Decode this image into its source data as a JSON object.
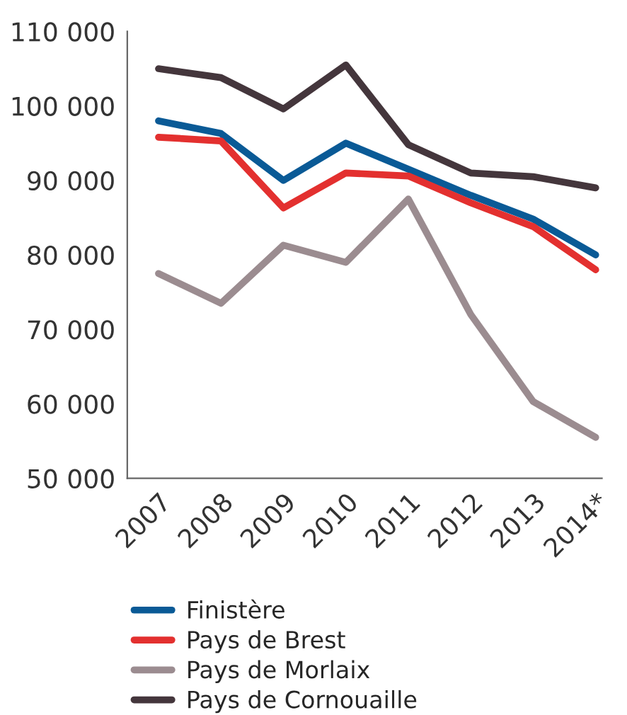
{
  "chart_data": {
    "type": "line",
    "categories": [
      "2007",
      "2008",
      "2009",
      "2010",
      "2011",
      "2012",
      "2013",
      "2014*"
    ],
    "series": [
      {
        "name": "Finistère",
        "color": "#0a5a96",
        "values": [
          98000,
          96300,
          90000,
          95000,
          91500,
          88000,
          84800,
          80000
        ]
      },
      {
        "name": "Pays de Brest",
        "color": "#e3302f",
        "values": [
          95800,
          95300,
          86300,
          91000,
          90600,
          87000,
          83800,
          78000
        ]
      },
      {
        "name": "Pays de Morlaix",
        "color": "#9b8c90",
        "values": [
          77500,
          73500,
          81300,
          79000,
          87500,
          72000,
          60300,
          55500
        ]
      },
      {
        "name": "Pays de Cornouaille",
        "color": "#44363c",
        "values": [
          105000,
          103800,
          99600,
          105500,
          94800,
          91000,
          90500,
          89000
        ]
      }
    ],
    "ylim": [
      50000,
      110000
    ],
    "yticks": [
      {
        "value": 50000,
        "label": "50 000"
      },
      {
        "value": 60000,
        "label": "60 000"
      },
      {
        "value": 70000,
        "label": "70 000"
      },
      {
        "value": 80000,
        "label": "80 000"
      },
      {
        "value": 90000,
        "label": "90 000"
      },
      {
        "value": 100000,
        "label": "100 000"
      },
      {
        "value": 110000,
        "label": "110 000"
      }
    ],
    "grid": false,
    "legend": "bottom",
    "marker": "none",
    "line_style": "solid"
  }
}
